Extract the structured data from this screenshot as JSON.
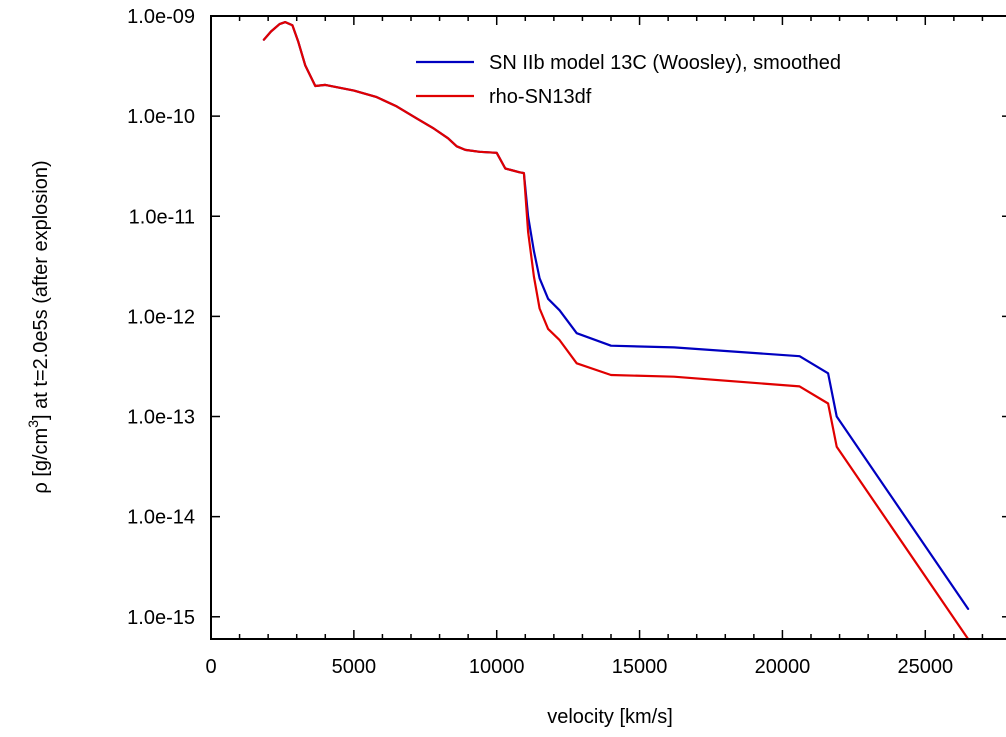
{
  "chart_data": {
    "type": "line",
    "title": "",
    "xlabel": "velocity [km/s]",
    "ylabel": {
      "prefix": "ρ [g/cm",
      "superscript": "3",
      "suffix": "]  at  t=2.0e5s  (after explosion)"
    },
    "xlim": [
      0,
      28000
    ],
    "ylim": [
      6e-16,
      1e-09
    ],
    "yscale": "log",
    "grid": false,
    "legend_position": "top-right",
    "x_ticks": [
      {
        "value": 0,
        "label": "0"
      },
      {
        "value": 5000,
        "label": "5000"
      },
      {
        "value": 10000,
        "label": "10000"
      },
      {
        "value": 15000,
        "label": "15000"
      },
      {
        "value": 20000,
        "label": "20000"
      },
      {
        "value": 25000,
        "label": "25000"
      }
    ],
    "y_ticks": [
      {
        "value": 1e-09,
        "label": "1.0e-09"
      },
      {
        "value": 1e-10,
        "label": "1.0e-10"
      },
      {
        "value": 1e-11,
        "label": "1.0e-11"
      },
      {
        "value": 1e-12,
        "label": "1.0e-12"
      },
      {
        "value": 1e-13,
        "label": "1.0e-13"
      },
      {
        "value": 1e-14,
        "label": "1.0e-14"
      },
      {
        "value": 1e-15,
        "label": "1.0e-15"
      }
    ],
    "series": [
      {
        "name": "SN IIb model 13C (Woosley), smoothed",
        "color": "#0000c0",
        "x": [
          1850,
          2100,
          2400,
          2600,
          2850,
          3050,
          3300,
          3650,
          4000,
          5000,
          5800,
          6500,
          7200,
          7800,
          8300,
          8600,
          8900,
          9400,
          10000,
          10300,
          10500,
          10800,
          10950,
          11100,
          11300,
          11500,
          11800,
          12200,
          12800,
          14000,
          16200,
          20600,
          21600,
          21900,
          26500
        ],
        "y": [
          5.8e-10,
          7e-10,
          8.3e-10,
          8.7e-10,
          8.1e-10,
          5.6e-10,
          3.2e-10,
          2e-10,
          2.05e-10,
          1.8e-10,
          1.55e-10,
          1.25e-10,
          9.5e-11,
          7.5e-11,
          6e-11,
          5e-11,
          4.6e-11,
          4.4e-11,
          4.3e-11,
          3e-11,
          2.9e-11,
          2.75e-11,
          2.7e-11,
          1e-11,
          4.5e-12,
          2.4e-12,
          1.5e-12,
          1.15e-12,
          6.8e-13,
          5.1e-13,
          4.9e-13,
          4e-13,
          2.7e-13,
          1e-13,
          1.2e-15
        ]
      },
      {
        "name": "rho-SN13df",
        "color": "#e00000",
        "x": [
          1850,
          2100,
          2400,
          2600,
          2850,
          3050,
          3300,
          3650,
          4000,
          5000,
          5800,
          6500,
          7200,
          7800,
          8300,
          8600,
          8900,
          9400,
          10000,
          10300,
          10500,
          10800,
          10950,
          11100,
          11300,
          11500,
          11800,
          12200,
          12800,
          14000,
          16200,
          20600,
          21600,
          21900,
          26500
        ],
        "y": [
          5.8e-10,
          7e-10,
          8.3e-10,
          8.7e-10,
          8.1e-10,
          5.6e-10,
          3.2e-10,
          2e-10,
          2.05e-10,
          1.8e-10,
          1.55e-10,
          1.25e-10,
          9.5e-11,
          7.5e-11,
          6e-11,
          5e-11,
          4.6e-11,
          4.4e-11,
          4.3e-11,
          3e-11,
          2.9e-11,
          2.75e-11,
          2.7e-11,
          7e-12,
          2.5e-12,
          1.2e-12,
          7.5e-13,
          5.8e-13,
          3.4e-13,
          2.6e-13,
          2.5e-13,
          2e-13,
          1.35e-13,
          5e-14,
          6e-16
        ]
      }
    ]
  }
}
